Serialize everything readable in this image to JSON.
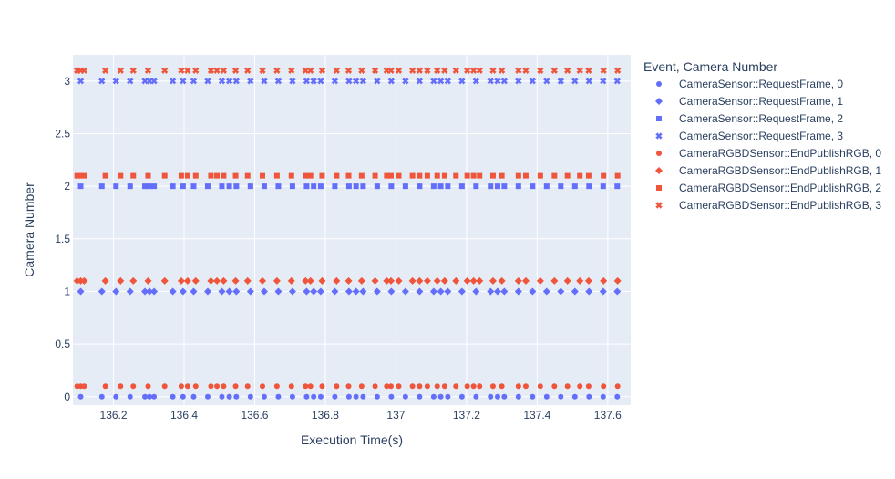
{
  "chart_data": {
    "type": "scatter",
    "xlabel": "Execution Time(s)",
    "ylabel": "Camera Number",
    "legend_title": "Event, Camera Number",
    "legend_position": "right",
    "grid": true,
    "xlim": [
      136.085,
      137.665
    ],
    "ylim": [
      -0.08,
      3.25
    ],
    "x_ticks": [
      {
        "v": 136.2,
        "label": "136.2"
      },
      {
        "v": 136.4,
        "label": "136.4"
      },
      {
        "v": 136.6,
        "label": "136.6"
      },
      {
        "v": 136.8,
        "label": "136.8"
      },
      {
        "v": 137.0,
        "label": "137"
      },
      {
        "v": 137.2,
        "label": "137.2"
      },
      {
        "v": 137.4,
        "label": "137.4"
      },
      {
        "v": 137.6,
        "label": "137.6"
      }
    ],
    "y_ticks": [
      {
        "v": 0,
        "label": "0"
      },
      {
        "v": 0.5,
        "label": "0.5"
      },
      {
        "v": 1,
        "label": "1"
      },
      {
        "v": 1.5,
        "label": "1.5"
      },
      {
        "v": 2,
        "label": "2"
      },
      {
        "v": 2.5,
        "label": "2.5"
      },
      {
        "v": 3,
        "label": "3"
      }
    ],
    "request_times": [
      136.107,
      136.167,
      136.207,
      136.247,
      136.289,
      136.302,
      136.315,
      136.368,
      136.397,
      136.427,
      136.467,
      136.507,
      136.528,
      136.548,
      136.588,
      136.627,
      136.667,
      136.707,
      136.747,
      136.767,
      136.787,
      136.827,
      136.867,
      136.887,
      136.907,
      136.947,
      136.987,
      137.027,
      137.067,
      137.107,
      137.127,
      137.147,
      137.187,
      137.227,
      137.268,
      137.288,
      137.307,
      137.347,
      137.387,
      137.427,
      137.467,
      137.507,
      137.547,
      137.587,
      137.627,
      137.667
    ],
    "publish_times": [
      136.097,
      136.107,
      136.117,
      136.177,
      136.22,
      136.256,
      136.298,
      136.345,
      136.392,
      136.41,
      136.433,
      136.476,
      136.493,
      136.512,
      136.546,
      136.58,
      136.622,
      136.663,
      136.704,
      136.744,
      136.758,
      136.791,
      136.832,
      136.866,
      136.903,
      136.941,
      136.974,
      136.986,
      137.008,
      137.047,
      137.067,
      137.089,
      137.117,
      137.138,
      137.17,
      137.202,
      137.22,
      137.237,
      137.275,
      137.3,
      137.347,
      137.368,
      137.409,
      137.449,
      137.486,
      137.521,
      137.546,
      137.588,
      137.628,
      137.672
    ],
    "publish_offset": 0.1,
    "series": [
      {
        "name": "CameraSensor::RequestFrame, 0",
        "color": "#636efa",
        "symbol": "circle",
        "camera": 0,
        "times": "request_times"
      },
      {
        "name": "CameraSensor::RequestFrame, 1",
        "color": "#636efa",
        "symbol": "diamond",
        "camera": 1,
        "times": "request_times"
      },
      {
        "name": "CameraSensor::RequestFrame, 2",
        "color": "#636efa",
        "symbol": "square",
        "camera": 2,
        "times": "request_times"
      },
      {
        "name": "CameraSensor::RequestFrame, 3",
        "color": "#636efa",
        "symbol": "x",
        "camera": 3,
        "times": "request_times"
      },
      {
        "name": "CameraRGBDSensor::EndPublishRGB, 0",
        "color": "#ef553b",
        "symbol": "circle",
        "camera": 0,
        "times": "publish_times"
      },
      {
        "name": "CameraRGBDSensor::EndPublishRGB, 1",
        "color": "#ef553b",
        "symbol": "diamond",
        "camera": 1,
        "times": "publish_times"
      },
      {
        "name": "CameraRGBDSensor::EndPublishRGB, 2",
        "color": "#ef553b",
        "symbol": "square",
        "camera": 2,
        "times": "publish_times"
      },
      {
        "name": "CameraRGBDSensor::EndPublishRGB, 3",
        "color": "#ef553b",
        "symbol": "x",
        "camera": 3,
        "times": "publish_times"
      }
    ]
  }
}
